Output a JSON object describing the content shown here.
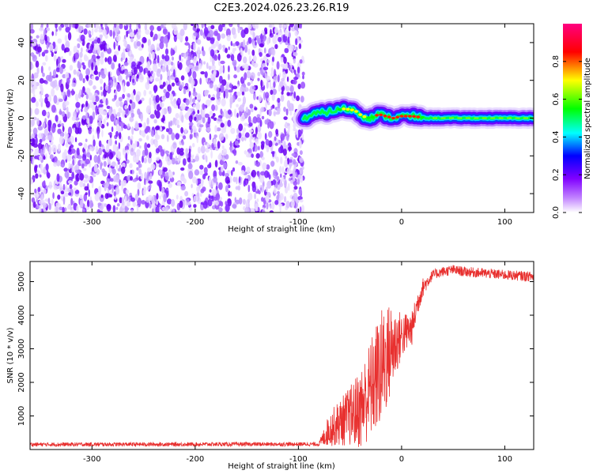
{
  "title": "C2E3.2024.026.23.26.R19",
  "chart_data": [
    {
      "type": "heatmap",
      "xlabel": "Height of straight line (km)",
      "ylabel": "Frequency (Hz)",
      "xlim": [
        -360,
        128
      ],
      "ylim": [
        -50,
        50
      ],
      "x_ticks": [
        -300,
        -200,
        -100,
        0,
        100
      ],
      "y_ticks": [
        -40,
        -20,
        0,
        20,
        40
      ],
      "colorbar": {
        "label": "Normalized spectral amplitude",
        "range": [
          0,
          1
        ],
        "ticks": [
          0.0,
          0.2,
          0.4,
          0.6,
          0.8
        ],
        "colors": [
          "#ffffff",
          "#8000ff",
          "#0000ff",
          "#00ffff",
          "#00ff00",
          "#ffff00",
          "#ff0000",
          "#ff0080"
        ]
      },
      "noise_region_x": [
        -360,
        -95
      ],
      "signal_track": {
        "x": [
          -95,
          -85,
          -75,
          -65,
          -55,
          -45,
          -38,
          -30,
          -22,
          -15,
          -8,
          0,
          10,
          25,
          60,
          100,
          128
        ],
        "freq": [
          0,
          2,
          3,
          4,
          5,
          4,
          1,
          0,
          2,
          1,
          0,
          1,
          1,
          0,
          0,
          0,
          0
        ]
      }
    },
    {
      "type": "line",
      "xlabel": "Height of straight line (km)",
      "ylabel": "SNR (10 * v/v)",
      "xlim": [
        -360,
        128
      ],
      "ylim": [
        0,
        5600
      ],
      "x_ticks": [
        -300,
        -200,
        -100,
        0,
        100
      ],
      "y_ticks": [
        1000,
        2000,
        3000,
        4000,
        5000
      ],
      "color": "#e8302f",
      "profile": {
        "x": [
          -360,
          -80,
          -70,
          -60,
          -50,
          -40,
          -30,
          -20,
          -10,
          -5,
          0,
          10,
          15,
          20,
          25,
          30,
          40,
          50,
          60,
          80,
          100,
          128
        ],
        "snr": [
          150,
          160,
          600,
          800,
          1000,
          1200,
          1800,
          2400,
          3000,
          3200,
          3400,
          3600,
          4300,
          4800,
          5000,
          5200,
          5300,
          5350,
          5300,
          5250,
          5200,
          5150
        ],
        "spread": [
          60,
          60,
          500,
          700,
          900,
          1200,
          1500,
          1800,
          1400,
          1000,
          700,
          500,
          400,
          300,
          200,
          150,
          150,
          150,
          150,
          150,
          150,
          150
        ]
      }
    }
  ]
}
